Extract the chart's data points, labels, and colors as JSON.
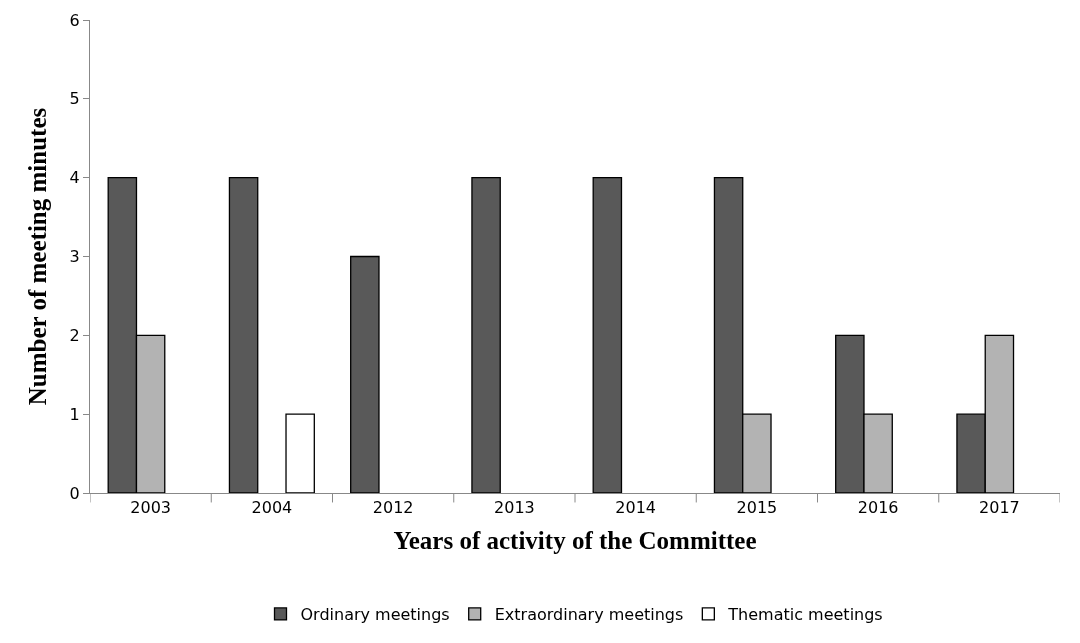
{
  "chart_data": {
    "type": "bar",
    "xlabel": "Years of activity of the Committee",
    "ylabel": "Number of meeting minutes",
    "categories": [
      "2003",
      "2004",
      "2012",
      "2013",
      "2014",
      "2015",
      "2016",
      "2017"
    ],
    "series": [
      {
        "name": "Ordinary meetings",
        "color": "#595959",
        "values": [
          4,
          4,
          3,
          4,
          4,
          4,
          2,
          1
        ]
      },
      {
        "name": "Extraordinary meetings",
        "color": "#b3b3b3",
        "values": [
          2,
          null,
          null,
          null,
          null,
          1,
          1,
          2
        ]
      },
      {
        "name": "Thematic meetings",
        "color": "#ffffff",
        "values": [
          null,
          1,
          null,
          null,
          null,
          null,
          null,
          null
        ]
      }
    ],
    "ylim": [
      0,
      6
    ],
    "yticks": [
      0,
      1,
      2,
      3,
      4,
      5,
      6
    ],
    "legend": "bottom"
  }
}
